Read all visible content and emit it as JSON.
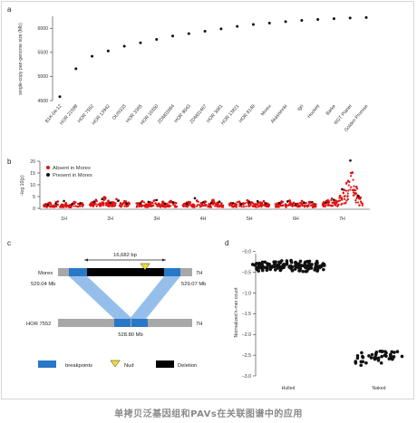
{
  "panels": {
    "a": {
      "letter": "a"
    },
    "b": {
      "letter": "b"
    },
    "c": {
      "letter": "c"
    },
    "d": {
      "letter": "d"
    }
  },
  "chart_data": [
    {
      "panel": "a",
      "type": "scatter",
      "title": "",
      "xlabel": "",
      "ylabel": "single-copy pan-genome size (Mb)",
      "ylim": [
        4500,
        6250
      ],
      "yticks": [
        4500,
        5000,
        5500,
        6000
      ],
      "categories": [
        "B1K-04-12",
        "HOR 21599",
        "HOR 7552",
        "HOR 13942",
        "OUN333",
        "HOR 3365",
        "HOR 10350",
        "ZDM02064",
        "HOR 9043",
        "ZDM01467",
        "HOR 3081",
        "HOR 13821",
        "HOR 8148",
        "Morex",
        "Akashinriki",
        "Igri",
        "Hockett",
        "Barke",
        "RGT Planet",
        "Golden Promise"
      ],
      "values": [
        4580,
        5160,
        5420,
        5530,
        5630,
        5700,
        5770,
        5840,
        5890,
        5940,
        5990,
        6040,
        6080,
        6110,
        6140,
        6165,
        6185,
        6200,
        6215,
        6225
      ],
      "color": "#111111",
      "grid": false
    },
    {
      "panel": "b",
      "type": "scatter",
      "title": "",
      "xlabel": "",
      "ylabel": "−log 10(p)",
      "ylim": [
        0,
        20
      ],
      "yticks": [
        0,
        5,
        10,
        15,
        20
      ],
      "x_categories": [
        "1H",
        "2H",
        "3H",
        "4H",
        "5H",
        "6H",
        "7H"
      ],
      "legend_position": "top-left",
      "series": [
        {
          "name": "Absent in Morex",
          "color": "#e01010"
        },
        {
          "name": "Present in Morex",
          "color": "#111111"
        }
      ],
      "chromosomes": [
        {
          "name": "1H",
          "x": [
            0.05,
            0.15,
            0.25,
            0.35,
            0.45,
            0.55,
            0.65,
            0.75,
            0.85,
            0.95
          ],
          "absent": [
            1.8,
            2.4,
            1.2,
            2.9,
            1.6,
            2.2,
            1.4,
            2.7,
            1.9,
            2.1
          ],
          "present": [
            1.5,
            2.0,
            3.1,
            1.8,
            2.2
          ]
        },
        {
          "name": "2H",
          "x": [
            0.05,
            0.15,
            0.25,
            0.35,
            0.45,
            0.55,
            0.65,
            0.75,
            0.85,
            0.95
          ],
          "absent": [
            2.5,
            3.6,
            2.1,
            4.8,
            3.2,
            2.6,
            3.9,
            2.2,
            3.0,
            2.4
          ],
          "present": [
            2.8,
            3.9,
            2.4,
            3.3,
            2.0
          ]
        },
        {
          "name": "3H",
          "x": [
            0.05,
            0.15,
            0.25,
            0.35,
            0.45,
            0.55,
            0.65,
            0.75,
            0.85,
            0.95
          ],
          "absent": [
            2.2,
            3.0,
            1.7,
            2.6,
            3.4,
            2.0,
            2.8,
            1.9,
            3.1,
            2.3
          ],
          "present": [
            2.1,
            2.7,
            3.5,
            2.0,
            2.6
          ]
        },
        {
          "name": "4H",
          "x": [
            0.05,
            0.15,
            0.25,
            0.35,
            0.45,
            0.55,
            0.65,
            0.75,
            0.85,
            0.95
          ],
          "absent": [
            2.0,
            2.7,
            1.6,
            3.3,
            2.2,
            2.9,
            1.8,
            3.6,
            2.4,
            2.1
          ],
          "present": [
            1.9,
            4.3,
            2.5,
            2.2,
            2.8
          ]
        },
        {
          "name": "5H",
          "x": [
            0.05,
            0.15,
            0.25,
            0.35,
            0.45,
            0.55,
            0.65,
            0.75,
            0.85,
            0.95
          ],
          "absent": [
            2.3,
            1.9,
            2.8,
            2.2,
            3.4,
            2.6,
            1.8,
            2.5,
            3.0,
            2.0
          ],
          "present": [
            2.2,
            1.8,
            2.6,
            3.0,
            2.1
          ]
        },
        {
          "name": "6H",
          "x": [
            0.05,
            0.15,
            0.25,
            0.35,
            0.45,
            0.55,
            0.65,
            0.75,
            0.85,
            0.95
          ],
          "absent": [
            2.1,
            2.9,
            1.7,
            3.3,
            2.4,
            2.0,
            3.1,
            2.2,
            2.7,
            1.9
          ],
          "present": [
            2.3,
            2.9,
            1.8,
            2.4,
            2.6
          ]
        },
        {
          "name": "7H",
          "x": [
            0.05,
            0.15,
            0.25,
            0.35,
            0.45,
            0.55,
            0.65,
            0.75,
            0.85,
            0.95
          ],
          "absent": [
            2.6,
            3.4,
            4.1,
            3.2,
            5.3,
            7.8,
            11.6,
            15.2,
            9.1,
            4.6
          ],
          "present": [
            2.4,
            3.6,
            8.1,
            20.3,
            5.2
          ]
        }
      ]
    },
    {
      "panel": "d",
      "type": "scatter",
      "title": "",
      "xlabel": "",
      "ylabel": "Normalized k-mer count",
      "ylim": [
        -3.0,
        -0.05
      ],
      "yticks": [
        -0.5,
        -1.0,
        -1.5,
        -2.0,
        -2.5,
        -3.0,
        -0.0
      ],
      "categories": [
        "Hulled",
        "Naked"
      ],
      "series": [
        {
          "name": "Hulled",
          "center": -0.35,
          "spread": 0.15,
          "n": 160
        },
        {
          "name": "Naked",
          "center": -2.55,
          "spread": 0.22,
          "n": 45
        }
      ],
      "color": "#111111"
    }
  ],
  "diagram_c": {
    "top_label": "Morex",
    "top_chrom": "7H",
    "bottom_label": "HOR 7552",
    "bottom_chrom": "7H",
    "span_label": "16,682 bp",
    "left_pos": "529.04 Mb",
    "right_pos": "529.07 Mb",
    "bottom_pos": "528.80 Mb",
    "legend": [
      {
        "label": "breakpoints",
        "color": "#2878c8"
      },
      {
        "label": "Nud",
        "color": "#f0e030"
      },
      {
        "label": "Deletion",
        "color": "#000000"
      }
    ]
  },
  "caption": "单拷贝泛基因组和PAVs在关联图谱中的应用"
}
